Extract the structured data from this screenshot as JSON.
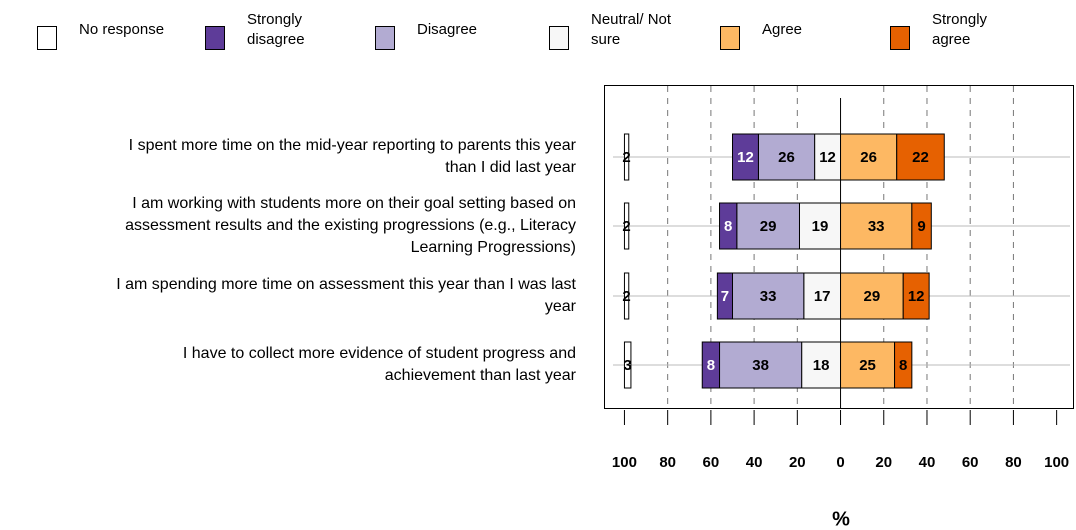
{
  "chart_data": {
    "type": "diverging_bar",
    "x_label": "%",
    "categories": [
      [
        "I spent more time on the mid-year reporting to parents this year",
        "than I did last year"
      ],
      [
        "I am working with students more on their goal setting based on",
        "assessment results and the existing progressions (e.g., Literacy",
        "Learning Progressions)"
      ],
      [
        "I am spending more time on assessment this year than I was last",
        "year"
      ],
      [
        "I have to collect more evidence of student progress and",
        "achievement than last year"
      ]
    ],
    "series": [
      {
        "name": "No response",
        "color": "#ffffff",
        "values": [
          2,
          2,
          2,
          3
        ]
      },
      {
        "name": "Strongly disagree",
        "color": "#5e3c99",
        "values": [
          12,
          8,
          7,
          8
        ]
      },
      {
        "name": "Disagree",
        "color": "#b2abd2",
        "values": [
          26,
          29,
          33,
          38
        ]
      },
      {
        "name": "Neutral/ Not sure",
        "color": "#f7f7f7",
        "values": [
          12,
          19,
          17,
          18
        ]
      },
      {
        "name": "Agree",
        "color": "#fdb863",
        "values": [
          26,
          33,
          29,
          25
        ]
      },
      {
        "name": "Strongly agree",
        "color": "#e66101",
        "values": [
          22,
          9,
          12,
          8
        ]
      }
    ],
    "xlim": [
      -109,
      108.5
    ],
    "xticks": [
      {
        "value": -100,
        "label": "100"
      },
      {
        "value": -80,
        "label": "80"
      },
      {
        "value": -60,
        "label": "60"
      },
      {
        "value": -40,
        "label": "40"
      },
      {
        "value": -20,
        "label": "20"
      },
      0,
      20,
      40,
      60,
      80,
      100
    ],
    "grid": true
  }
}
